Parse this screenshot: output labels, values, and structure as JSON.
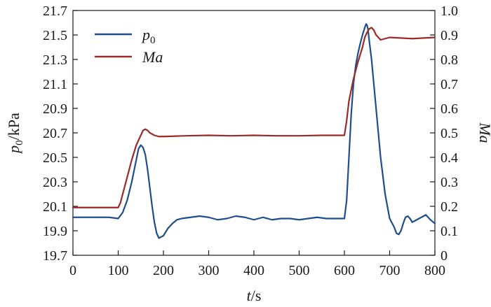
{
  "chart_data": {
    "type": "line",
    "title": "",
    "xlabel": {
      "italic": "t",
      "rest": "/s"
    },
    "ylabel_left": {
      "base": "p",
      "sub": "0",
      "rest": "/kPa"
    },
    "ylabel_right": {
      "italic": "Ma"
    },
    "xlim": [
      0,
      800
    ],
    "ylim_left": [
      19.7,
      21.7
    ],
    "ylim_right": [
      0,
      1.0
    ],
    "x_ticks": [
      "0",
      "100",
      "200",
      "300",
      "400",
      "500",
      "600",
      "700",
      "800"
    ],
    "y_left_ticks": [
      "19.7",
      "19.9",
      "20.1",
      "20.3",
      "20.5",
      "20.7",
      "20.9",
      "21.1",
      "21.3",
      "21.5",
      "21.7"
    ],
    "y_right_ticks": [
      "0",
      "0.1",
      "0.2",
      "0.3",
      "0.4",
      "0.5",
      "0.6",
      "0.7",
      "0.8",
      "0.9",
      "1.0"
    ],
    "grid": false,
    "legend_position": "top-left",
    "series": [
      {
        "name": "p0",
        "legend_base": "p",
        "legend_sub": "0",
        "axis": "left",
        "color": "#1f4e8c",
        "x": [
          0,
          20,
          50,
          80,
          100,
          110,
          120,
          130,
          140,
          145,
          150,
          155,
          160,
          165,
          170,
          175,
          180,
          185,
          190,
          200,
          210,
          220,
          230,
          240,
          260,
          280,
          300,
          320,
          340,
          360,
          380,
          400,
          420,
          440,
          460,
          480,
          500,
          520,
          540,
          560,
          580,
          600,
          605,
          610,
          615,
          620,
          625,
          630,
          635,
          640,
          645,
          648,
          650,
          652,
          655,
          660,
          665,
          670,
          675,
          680,
          685,
          690,
          695,
          700,
          710,
          715,
          720,
          725,
          730,
          735,
          740,
          745,
          750,
          760,
          770,
          780,
          790,
          800
        ],
        "y": [
          20.01,
          20.01,
          20.01,
          20.01,
          20.0,
          20.05,
          20.15,
          20.3,
          20.48,
          20.57,
          20.6,
          20.58,
          20.52,
          20.4,
          20.25,
          20.1,
          19.97,
          19.88,
          19.84,
          19.86,
          19.92,
          19.96,
          19.99,
          20.0,
          20.01,
          20.02,
          20.01,
          19.99,
          20.0,
          20.02,
          20.01,
          19.99,
          20.01,
          19.99,
          20.0,
          20.0,
          19.99,
          20.0,
          20.01,
          20.0,
          20.0,
          20.0,
          20.15,
          20.5,
          20.85,
          21.1,
          21.25,
          21.35,
          21.43,
          21.5,
          21.56,
          21.59,
          21.58,
          21.55,
          21.45,
          21.3,
          21.1,
          20.9,
          20.7,
          20.5,
          20.35,
          20.2,
          20.1,
          20.0,
          19.93,
          19.88,
          19.87,
          19.9,
          19.96,
          20.01,
          20.02,
          20.0,
          19.97,
          19.99,
          20.01,
          20.03,
          19.99,
          19.96
        ]
      },
      {
        "name": "Ma",
        "legend_base": "Ma",
        "legend_sub": "",
        "axis": "right",
        "color": "#9c2a2a",
        "x": [
          0,
          50,
          100,
          105,
          110,
          120,
          130,
          140,
          145,
          150,
          155,
          160,
          165,
          170,
          180,
          190,
          200,
          250,
          300,
          350,
          400,
          450,
          500,
          550,
          600,
          605,
          610,
          620,
          630,
          640,
          645,
          650,
          655,
          660,
          665,
          670,
          680,
          690,
          700,
          750,
          800
        ],
        "y": [
          0.195,
          0.195,
          0.195,
          0.215,
          0.25,
          0.32,
          0.39,
          0.45,
          0.47,
          0.49,
          0.51,
          0.515,
          0.51,
          0.5,
          0.49,
          0.485,
          0.485,
          0.488,
          0.49,
          0.488,
          0.49,
          0.488,
          0.488,
          0.49,
          0.49,
          0.55,
          0.63,
          0.72,
          0.79,
          0.85,
          0.89,
          0.91,
          0.925,
          0.93,
          0.92,
          0.9,
          0.88,
          0.885,
          0.89,
          0.885,
          0.89
        ]
      }
    ]
  }
}
